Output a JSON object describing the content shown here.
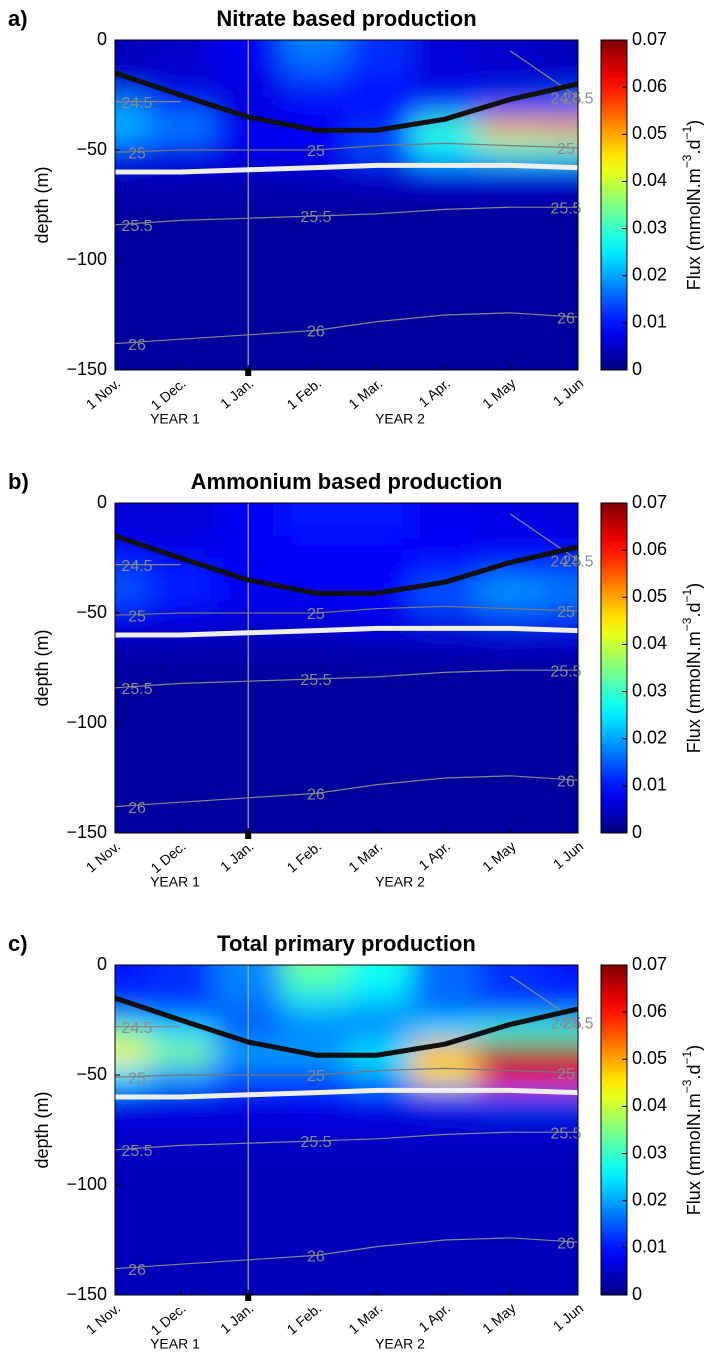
{
  "chart_data": [
    {
      "type": "heatmap",
      "panel_label": "a)",
      "title": "Nitrate based production",
      "ylabel": "depth (m)",
      "x": [
        0,
        30,
        61,
        92,
        120,
        151,
        181,
        212
      ],
      "y": [
        0,
        -10,
        -20,
        -30,
        -40,
        -50,
        -60,
        -70,
        -80,
        -90,
        -100,
        -110,
        -120,
        -130,
        -140,
        -150
      ],
      "z": [
        [
          0.004,
          0.005,
          0.008,
          0.018,
          0.012,
          0.006,
          0.005,
          0.004
        ],
        [
          0.004,
          0.005,
          0.008,
          0.016,
          0.012,
          0.006,
          0.005,
          0.004
        ],
        [
          0.006,
          0.006,
          0.007,
          0.012,
          0.01,
          0.007,
          0.006,
          0.006
        ],
        [
          0.018,
          0.012,
          0.006,
          0.008,
          0.009,
          0.012,
          0.014,
          0.016
        ],
        [
          0.022,
          0.018,
          0.008,
          0.008,
          0.012,
          0.03,
          0.05,
          0.052
        ],
        [
          0.012,
          0.01,
          0.008,
          0.008,
          0.014,
          0.025,
          0.03,
          0.03
        ],
        [
          0.004,
          0.004,
          0.004,
          0.005,
          0.006,
          0.008,
          0.008,
          0.008
        ],
        [
          0.003,
          0.003,
          0.003,
          0.003,
          0.003,
          0.003,
          0.003,
          0.003
        ],
        [
          0.002,
          0.002,
          0.002,
          0.002,
          0.002,
          0.002,
          0.002,
          0.002
        ],
        [
          0.002,
          0.002,
          0.002,
          0.002,
          0.002,
          0.002,
          0.002,
          0.002
        ],
        [
          0.002,
          0.002,
          0.002,
          0.002,
          0.002,
          0.002,
          0.002,
          0.002
        ],
        [
          0.002,
          0.002,
          0.002,
          0.002,
          0.002,
          0.002,
          0.002,
          0.002
        ],
        [
          0.002,
          0.002,
          0.002,
          0.002,
          0.002,
          0.002,
          0.002,
          0.002
        ],
        [
          0.002,
          0.002,
          0.002,
          0.002,
          0.002,
          0.002,
          0.002,
          0.002
        ],
        [
          0.002,
          0.002,
          0.002,
          0.002,
          0.002,
          0.002,
          0.002,
          0.002
        ],
        [
          0.002,
          0.002,
          0.002,
          0.002,
          0.002,
          0.002,
          0.002,
          0.002
        ]
      ],
      "xlim": [
        0,
        212
      ],
      "xticks": [
        {
          "value": 0,
          "label": "1 Nov."
        },
        {
          "value": 30,
          "label": "1 Dec."
        },
        {
          "value": 61,
          "label": "1 Jan."
        },
        {
          "value": 92,
          "label": "1 Feb."
        },
        {
          "value": 120,
          "label": "1 Mar."
        },
        {
          "value": 151,
          "label": "1 Apr."
        },
        {
          "value": 181,
          "label": "1 May"
        },
        {
          "value": 212,
          "label": "1 Jun"
        }
      ],
      "ylim": [
        -150,
        0
      ],
      "yticks": [
        {
          "value": -150,
          "label": "−150"
        },
        {
          "value": -100,
          "label": "−100"
        },
        {
          "value": -50,
          "label": "−50"
        },
        0
      ],
      "zlim": [
        0,
        0.07
      ],
      "zticks": [
        0,
        0.01,
        0.02,
        0.03,
        0.04,
        0.05,
        0.06,
        0.07
      ],
      "zlabel": [
        "Flux (mmolN.m",
        "−3",
        ".d",
        "−1",
        ")"
      ],
      "colormap": "jet",
      "year_labels": [
        "YEAR 1",
        "YEAR 2"
      ],
      "lines": [
        {
          "color": "#111111",
          "values": [
            -15,
            -25,
            -35,
            -41,
            -41,
            -36,
            -27,
            -20
          ]
        },
        {
          "color": "#eeeeee",
          "values": [
            -60,
            -60,
            -59,
            -58,
            -57,
            -57,
            -57,
            -58
          ]
        }
      ],
      "contours": [
        {
          "level": 24.5,
          "color": "#888888",
          "values": [
            -28,
            -28,
            null,
            null,
            null,
            null,
            -5,
            -26
          ]
        },
        {
          "level": 25,
          "color": "#777777",
          "values": [
            -51,
            -50,
            -50,
            -50,
            -48,
            -47,
            -48,
            -49
          ]
        },
        {
          "level": 25.5,
          "color": "#888888",
          "values": [
            -84,
            -82,
            -81,
            -80,
            -79,
            -77,
            -76,
            -76
          ]
        },
        {
          "level": 26,
          "color": "#888888",
          "values": [
            -138,
            -136,
            -134,
            -132,
            -128,
            -125,
            -124,
            -126
          ]
        }
      ]
    },
    {
      "type": "heatmap",
      "panel_label": "b)",
      "title": "Ammonium based production",
      "ylabel": "depth (m)",
      "x": [
        0,
        30,
        61,
        92,
        120,
        151,
        181,
        212
      ],
      "y": [
        0,
        -10,
        -20,
        -30,
        -40,
        -50,
        -60,
        -70,
        -80,
        -90,
        -100,
        -110,
        -120,
        -130,
        -140,
        -150
      ],
      "z": [
        [
          0.006,
          0.006,
          0.008,
          0.01,
          0.01,
          0.008,
          0.007,
          0.006
        ],
        [
          0.006,
          0.006,
          0.008,
          0.01,
          0.01,
          0.008,
          0.007,
          0.006
        ],
        [
          0.008,
          0.007,
          0.008,
          0.009,
          0.009,
          0.008,
          0.008,
          0.008
        ],
        [
          0.012,
          0.01,
          0.008,
          0.008,
          0.008,
          0.01,
          0.012,
          0.012
        ],
        [
          0.015,
          0.011,
          0.008,
          0.008,
          0.009,
          0.015,
          0.02,
          0.018
        ],
        [
          0.009,
          0.008,
          0.007,
          0.007,
          0.008,
          0.012,
          0.014,
          0.013
        ],
        [
          0.004,
          0.004,
          0.004,
          0.004,
          0.005,
          0.005,
          0.006,
          0.006
        ],
        [
          0.003,
          0.003,
          0.003,
          0.003,
          0.003,
          0.003,
          0.003,
          0.003
        ],
        [
          0.002,
          0.002,
          0.002,
          0.002,
          0.002,
          0.002,
          0.002,
          0.002
        ],
        [
          0.002,
          0.002,
          0.002,
          0.002,
          0.002,
          0.002,
          0.002,
          0.002
        ],
        [
          0.002,
          0.002,
          0.002,
          0.002,
          0.002,
          0.002,
          0.002,
          0.002
        ],
        [
          0.002,
          0.002,
          0.002,
          0.002,
          0.002,
          0.002,
          0.002,
          0.002
        ],
        [
          0.002,
          0.002,
          0.002,
          0.002,
          0.002,
          0.002,
          0.002,
          0.002
        ],
        [
          0.002,
          0.002,
          0.002,
          0.002,
          0.002,
          0.002,
          0.002,
          0.002
        ],
        [
          0.002,
          0.002,
          0.002,
          0.002,
          0.002,
          0.002,
          0.002,
          0.002
        ],
        [
          0.002,
          0.002,
          0.002,
          0.002,
          0.002,
          0.002,
          0.002,
          0.002
        ]
      ],
      "xlim": [
        0,
        212
      ],
      "xticks": [
        {
          "value": 0,
          "label": "1 Nov."
        },
        {
          "value": 30,
          "label": "1 Dec."
        },
        {
          "value": 61,
          "label": "1 Jan."
        },
        {
          "value": 92,
          "label": "1 Feb."
        },
        {
          "value": 120,
          "label": "1 Mar."
        },
        {
          "value": 151,
          "label": "1 Apr."
        },
        {
          "value": 181,
          "label": "1 May"
        },
        {
          "value": 212,
          "label": "1 Jun"
        }
      ],
      "ylim": [
        -150,
        0
      ],
      "yticks": [
        {
          "value": -150,
          "label": "−150"
        },
        {
          "value": -100,
          "label": "−100"
        },
        {
          "value": -50,
          "label": "−50"
        },
        0
      ],
      "zlim": [
        0,
        0.07
      ],
      "zticks": [
        0,
        0.01,
        0.02,
        0.03,
        0.04,
        0.05,
        0.06,
        0.07
      ],
      "zlabel": [
        "Flux (mmolN.m",
        "−3",
        ".d",
        "−1",
        ")"
      ],
      "colormap": "jet",
      "year_labels": [
        "YEAR 1",
        "YEAR 2"
      ],
      "lines": [
        {
          "color": "#111111",
          "values": [
            -15,
            -25,
            -35,
            -41,
            -41,
            -36,
            -27,
            -20
          ]
        },
        {
          "color": "#eeeeee",
          "values": [
            -60,
            -60,
            -59,
            -58,
            -57,
            -57,
            -57,
            -58
          ]
        }
      ],
      "contours": [
        {
          "level": 24.5,
          "color": "#888888",
          "values": [
            -28,
            -28,
            null,
            null,
            null,
            null,
            -5,
            -26
          ]
        },
        {
          "level": 25,
          "color": "#777777",
          "values": [
            -51,
            -50,
            -50,
            -50,
            -48,
            -47,
            -48,
            -49
          ]
        },
        {
          "level": 25.5,
          "color": "#888888",
          "values": [
            -84,
            -82,
            -81,
            -80,
            -79,
            -77,
            -76,
            -76
          ]
        },
        {
          "level": 26,
          "color": "#888888",
          "values": [
            -138,
            -136,
            -134,
            -132,
            -128,
            -125,
            -124,
            -126
          ]
        }
      ]
    },
    {
      "type": "heatmap",
      "panel_label": "c)",
      "title": "Total primary production",
      "ylabel": "depth (m)",
      "x": [
        0,
        30,
        61,
        92,
        120,
        151,
        181,
        212
      ],
      "y": [
        0,
        -10,
        -20,
        -30,
        -40,
        -50,
        -60,
        -70,
        -80,
        -90,
        -100,
        -110,
        -120,
        -130,
        -140,
        -150
      ],
      "z": [
        [
          0.01,
          0.012,
          0.018,
          0.034,
          0.028,
          0.016,
          0.012,
          0.01
        ],
        [
          0.01,
          0.012,
          0.018,
          0.03,
          0.026,
          0.016,
          0.012,
          0.01
        ],
        [
          0.014,
          0.013,
          0.016,
          0.022,
          0.02,
          0.016,
          0.014,
          0.014
        ],
        [
          0.032,
          0.024,
          0.015,
          0.017,
          0.018,
          0.024,
          0.03,
          0.03
        ],
        [
          0.045,
          0.035,
          0.02,
          0.02,
          0.025,
          0.05,
          0.07,
          0.07
        ],
        [
          0.025,
          0.02,
          0.015,
          0.015,
          0.02,
          0.045,
          0.06,
          0.06
        ],
        [
          0.008,
          0.008,
          0.008,
          0.009,
          0.01,
          0.012,
          0.014,
          0.014
        ],
        [
          0.006,
          0.006,
          0.006,
          0.006,
          0.006,
          0.006,
          0.006,
          0.006
        ],
        [
          0.005,
          0.005,
          0.005,
          0.005,
          0.005,
          0.005,
          0.005,
          0.005
        ],
        [
          0.004,
          0.004,
          0.004,
          0.004,
          0.004,
          0.004,
          0.004,
          0.004
        ],
        [
          0.004,
          0.004,
          0.004,
          0.004,
          0.004,
          0.004,
          0.004,
          0.004
        ],
        [
          0.004,
          0.004,
          0.004,
          0.004,
          0.004,
          0.004,
          0.004,
          0.004
        ],
        [
          0.004,
          0.004,
          0.004,
          0.004,
          0.004,
          0.004,
          0.004,
          0.004
        ],
        [
          0.004,
          0.004,
          0.004,
          0.004,
          0.004,
          0.004,
          0.004,
          0.004
        ],
        [
          0.004,
          0.004,
          0.004,
          0.004,
          0.004,
          0.004,
          0.004,
          0.004
        ],
        [
          0.004,
          0.004,
          0.004,
          0.004,
          0.004,
          0.004,
          0.004,
          0.004
        ]
      ],
      "xlim": [
        0,
        212
      ],
      "xticks": [
        {
          "value": 0,
          "label": "1 Nov."
        },
        {
          "value": 30,
          "label": "1 Dec."
        },
        {
          "value": 61,
          "label": "1 Jan."
        },
        {
          "value": 92,
          "label": "1 Feb."
        },
        {
          "value": 120,
          "label": "1 Mar."
        },
        {
          "value": 151,
          "label": "1 Apr."
        },
        {
          "value": 181,
          "label": "1 May"
        },
        {
          "value": 212,
          "label": "1 Jun"
        }
      ],
      "ylim": [
        -150,
        0
      ],
      "yticks": [
        {
          "value": -150,
          "label": "−150"
        },
        {
          "value": -100,
          "label": "−100"
        },
        {
          "value": -50,
          "label": "−50"
        },
        0
      ],
      "zlim": [
        0,
        0.07
      ],
      "zticks": [
        0,
        0.01,
        0.02,
        0.03,
        0.04,
        0.05,
        0.06,
        0.07
      ],
      "zlabel": [
        "Flux (mmolN.m",
        "−3",
        ".d",
        "−1",
        ")"
      ],
      "colormap": "jet",
      "year_labels": [
        "YEAR 1",
        "YEAR 2"
      ],
      "lines": [
        {
          "color": "#111111",
          "values": [
            -15,
            -25,
            -35,
            -41,
            -41,
            -36,
            -27,
            -20
          ]
        },
        {
          "color": "#eeeeee",
          "values": [
            -60,
            -60,
            -59,
            -58,
            -57,
            -57,
            -57,
            -58
          ]
        }
      ],
      "contours": [
        {
          "level": 24.5,
          "color": "#888888",
          "values": [
            -28,
            -28,
            null,
            null,
            null,
            null,
            -5,
            -26
          ]
        },
        {
          "level": 25,
          "color": "#777777",
          "values": [
            -51,
            -50,
            -50,
            -50,
            -48,
            -47,
            -48,
            -49
          ]
        },
        {
          "level": 25.5,
          "color": "#888888",
          "values": [
            -84,
            -82,
            -81,
            -80,
            -79,
            -77,
            -76,
            -76
          ]
        },
        {
          "level": 26,
          "color": "#888888",
          "values": [
            -138,
            -136,
            -134,
            -132,
            -128,
            -125,
            -124,
            -126
          ]
        }
      ]
    }
  ]
}
